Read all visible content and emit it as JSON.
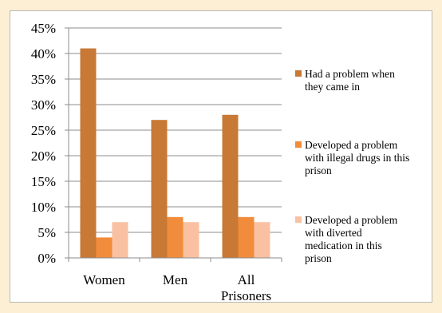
{
  "chart_data": {
    "type": "bar",
    "categories": [
      "Women",
      "Men",
      "All Prisoners"
    ],
    "category_lines": [
      [
        "Women"
      ],
      [
        "Men"
      ],
      [
        "All",
        "Prisoners"
      ]
    ],
    "series": [
      {
        "name": "Had a problem when they came in",
        "legend_lines": [
          "Had a problem when",
          "they came in"
        ],
        "color": "#c87936",
        "values": [
          41,
          27,
          28
        ]
      },
      {
        "name": "Developed a problem with illegal drugs in this prison",
        "legend_lines": [
          "Developed a problem",
          "with illegal drugs in this",
          "prison"
        ],
        "color": "#f08c3c",
        "values": [
          4,
          8,
          8
        ]
      },
      {
        "name": "Developed a problem with diverted medication in this prison",
        "legend_lines": [
          "Developed a problem",
          "with diverted",
          "medication in this",
          "prison"
        ],
        "color": "#f9c1a2",
        "values": [
          7,
          7,
          7
        ]
      }
    ],
    "ylim": [
      0,
      45
    ],
    "ytick_step": 5,
    "ytick_labels": [
      "0%",
      "5%",
      "10%",
      "15%",
      "20%",
      "25%",
      "30%",
      "35%",
      "40%",
      "45%"
    ],
    "grid": true,
    "legend_position": "right",
    "title": "",
    "xlabel": "",
    "ylabel": ""
  }
}
